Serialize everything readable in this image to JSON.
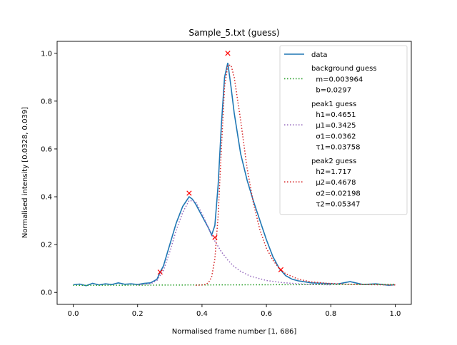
{
  "chart_data": {
    "type": "line",
    "title": "Sample_5.txt (guess)",
    "xlabel": "Normalised frame number [1, 686]",
    "ylabel": "Normalised intensity [0.0328, 0.039]",
    "xlim": [
      -0.05,
      1.05
    ],
    "ylim": [
      -0.05,
      1.05
    ],
    "xticks": [
      0.0,
      0.2,
      0.4,
      0.6,
      0.8,
      1.0
    ],
    "xtick_labels": [
      "0.0",
      "0.2",
      "0.4",
      "0.6",
      "0.8",
      "1.0"
    ],
    "yticks": [
      0.0,
      0.2,
      0.4,
      0.6,
      0.8,
      1.0
    ],
    "ytick_labels": [
      "0.0",
      "0.2",
      "0.4",
      "0.6",
      "0.8",
      "1.0"
    ],
    "grid": false,
    "legend_position": "upper-right",
    "series": [
      {
        "name": "data",
        "style": "solid",
        "color": "#1f77b4",
        "x": [
          0.0,
          0.02,
          0.04,
          0.06,
          0.08,
          0.1,
          0.12,
          0.14,
          0.16,
          0.18,
          0.2,
          0.22,
          0.24,
          0.26,
          0.27,
          0.28,
          0.3,
          0.32,
          0.34,
          0.36,
          0.37,
          0.38,
          0.4,
          0.42,
          0.43,
          0.44,
          0.45,
          0.46,
          0.47,
          0.48,
          0.49,
          0.5,
          0.52,
          0.54,
          0.56,
          0.58,
          0.6,
          0.62,
          0.64,
          0.66,
          0.68,
          0.7,
          0.74,
          0.78,
          0.82,
          0.86,
          0.9,
          0.94,
          0.98,
          1.0
        ],
        "y": [
          0.032,
          0.035,
          0.028,
          0.038,
          0.031,
          0.036,
          0.033,
          0.04,
          0.034,
          0.036,
          0.033,
          0.038,
          0.04,
          0.055,
          0.085,
          0.11,
          0.2,
          0.29,
          0.36,
          0.4,
          0.39,
          0.37,
          0.32,
          0.27,
          0.24,
          0.28,
          0.45,
          0.7,
          0.9,
          0.96,
          0.86,
          0.75,
          0.58,
          0.47,
          0.38,
          0.3,
          0.22,
          0.15,
          0.1,
          0.07,
          0.055,
          0.048,
          0.04,
          0.038,
          0.035,
          0.045,
          0.033,
          0.036,
          0.03,
          0.032
        ]
      },
      {
        "name": "background guess",
        "style": "dotted",
        "color": "#2ca02c",
        "x": [
          0.0,
          1.0
        ],
        "y": [
          0.0297,
          0.0337
        ]
      },
      {
        "name": "peak1 guess",
        "style": "dotted",
        "color": "#9467bd",
        "x": [
          0.2,
          0.24,
          0.26,
          0.28,
          0.3,
          0.32,
          0.34,
          0.36,
          0.38,
          0.4,
          0.42,
          0.44,
          0.46,
          0.48,
          0.5,
          0.52,
          0.55,
          0.6,
          0.65,
          0.7,
          0.75,
          0.8
        ],
        "y": [
          0.031,
          0.036,
          0.05,
          0.092,
          0.17,
          0.26,
          0.335,
          0.385,
          0.38,
          0.33,
          0.27,
          0.215,
          0.17,
          0.135,
          0.108,
          0.088,
          0.068,
          0.05,
          0.041,
          0.036,
          0.033,
          0.032
        ]
      },
      {
        "name": "peak2 guess",
        "style": "dotted",
        "color": "#d62728",
        "x": [
          0.38,
          0.4,
          0.41,
          0.42,
          0.43,
          0.44,
          0.45,
          0.46,
          0.47,
          0.48,
          0.49,
          0.5,
          0.52,
          0.54,
          0.56,
          0.58,
          0.6,
          0.62,
          0.64,
          0.66,
          0.7,
          0.74,
          0.78,
          0.82,
          0.86,
          0.9,
          0.95,
          1.0
        ],
        "y": [
          0.03,
          0.031,
          0.033,
          0.04,
          0.065,
          0.14,
          0.32,
          0.6,
          0.86,
          0.95,
          0.95,
          0.9,
          0.72,
          0.52,
          0.37,
          0.26,
          0.185,
          0.135,
          0.1,
          0.078,
          0.055,
          0.044,
          0.039,
          0.036,
          0.034,
          0.033,
          0.032,
          0.031
        ]
      }
    ],
    "markers": {
      "symbol": "x",
      "color": "#ff0000",
      "x": [
        0.27,
        0.36,
        0.44,
        0.48,
        0.645
      ],
      "y": [
        0.085,
        0.415,
        0.23,
        1.0,
        0.095
      ]
    },
    "legend": [
      {
        "key": "data",
        "lines": [
          "data"
        ],
        "style": "solid",
        "color": "#1f77b4"
      },
      {
        "key": "background",
        "lines": [
          "background guess",
          "  m=0.003964",
          "  b=0.0297"
        ],
        "style": "dotted",
        "color": "#2ca02c"
      },
      {
        "key": "peak1",
        "lines": [
          "peak1 guess",
          "  h1=0.4651",
          "  μ1=0.3425",
          "  σ1=0.0362",
          "  τ1=0.03758"
        ],
        "style": "dotted",
        "color": "#9467bd"
      },
      {
        "key": "peak2",
        "lines": [
          "peak2 guess",
          "  h2=1.717",
          "  μ2=0.4678",
          "  σ2=0.02198",
          "  τ2=0.05347"
        ],
        "style": "dotted",
        "color": "#d62728"
      }
    ]
  }
}
